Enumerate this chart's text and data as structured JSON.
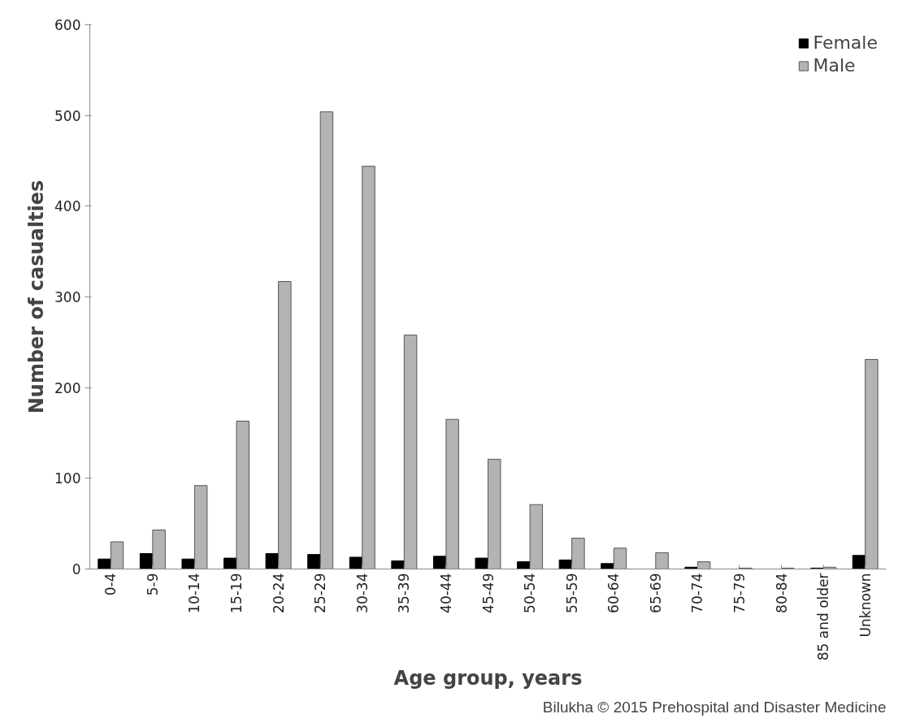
{
  "chart_data": {
    "type": "bar",
    "xlabel": "Age group, years",
    "ylabel": "Number of casualties",
    "categories": [
      "0-4",
      "5-9",
      "10-14",
      "15-19",
      "20-24",
      "25-29",
      "30-34",
      "35-39",
      "40-44",
      "45-49",
      "50-54",
      "55-59",
      "60-64",
      "65-69",
      "70-74",
      "75-79",
      "80-84",
      "85 and older",
      "Unknown"
    ],
    "series": [
      {
        "name": "Female",
        "color": "#000000",
        "values": [
          11,
          17,
          11,
          12,
          17,
          16,
          13,
          9,
          14,
          12,
          8,
          10,
          6,
          0,
          2,
          0,
          0,
          1,
          15
        ]
      },
      {
        "name": "Male",
        "color": "#b3b3b3",
        "values": [
          30,
          43,
          92,
          163,
          317,
          504,
          444,
          258,
          165,
          121,
          71,
          34,
          23,
          18,
          8,
          1,
          1,
          2,
          231
        ]
      }
    ],
    "ylim": [
      0,
      600
    ],
    "yticks": [
      0,
      100,
      200,
      300,
      400,
      500,
      600
    ],
    "grid": false,
    "legend": "top right",
    "annotations": [
      "Bilukha © 2015 Prehospital and Disaster Medicine"
    ]
  }
}
